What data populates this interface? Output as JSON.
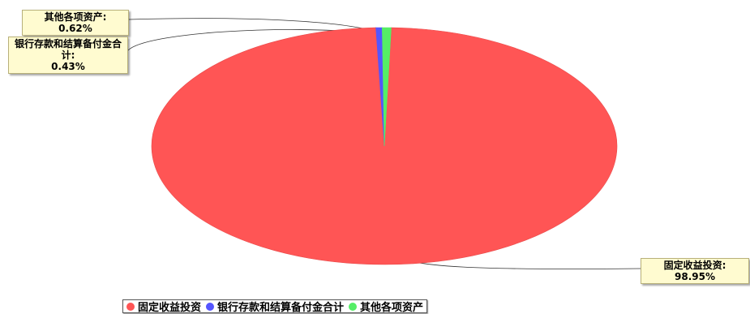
{
  "chart_data": {
    "type": "pie",
    "categories": [
      "固定收益投资",
      "银行存款和结算备付金合计",
      "其他各项资产"
    ],
    "values": [
      98.95,
      0.43,
      0.62
    ],
    "value_unit": "%",
    "colors": [
      "#ff5555",
      "#5555ff",
      "#55ee66"
    ],
    "labels": [
      {
        "category": "固定收益投资",
        "name": "固定收益投资:",
        "value": "98.95%"
      },
      {
        "category": "银行存款和结算备付金合计",
        "name": "银行存款和结算备付金合计:",
        "value": "0.43%"
      },
      {
        "category": "其他各项资产",
        "name": "其他各项资产:",
        "value": "0.62%"
      }
    ],
    "legend": {
      "position": "bottom",
      "items": [
        "固定收益投资",
        "银行存款和结算备付金合计",
        "其他各项资产"
      ]
    }
  }
}
